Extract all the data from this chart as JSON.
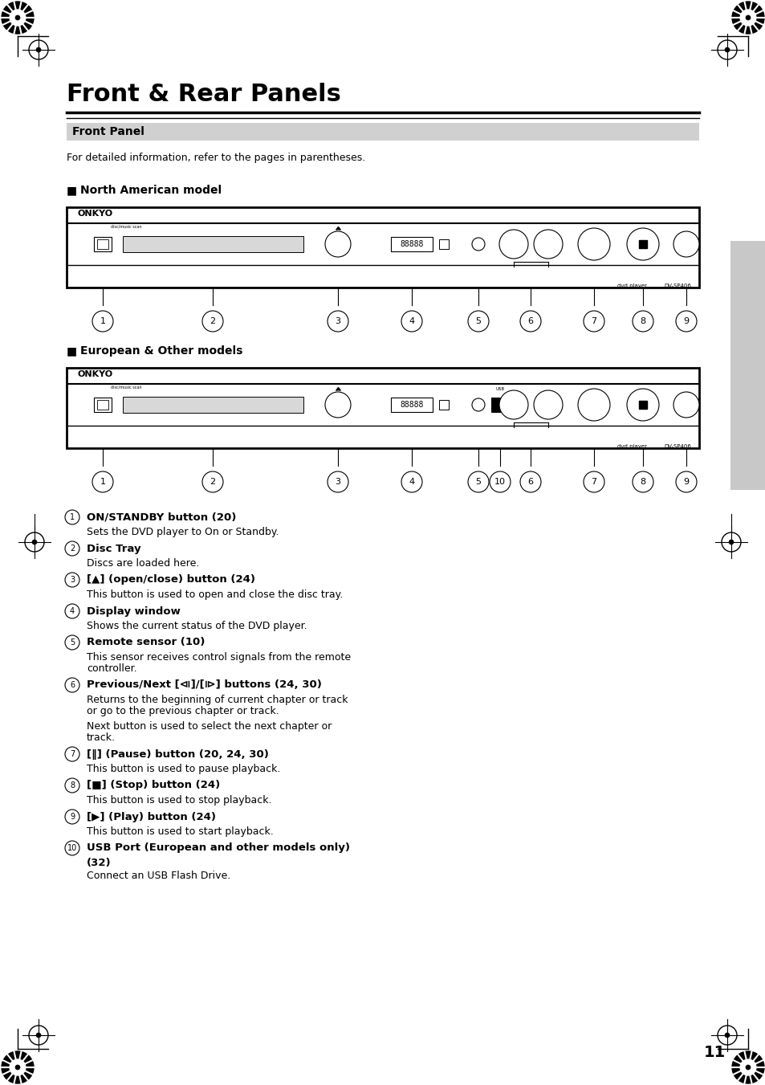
{
  "page_bg": "#ffffff",
  "title": "Front & Rear Panels",
  "section_header": "Front Panel",
  "intro_text": "For detailed information, refer to the pages in parentheses.",
  "north_american_label": "North American model",
  "european_label": "European & Other models",
  "items": [
    {
      "num": "1",
      "bold": "ON/STANDBY button (20)",
      "desc": "Sets the DVD player to On or Standby."
    },
    {
      "num": "2",
      "bold": "Disc Tray",
      "desc": "Discs are loaded here."
    },
    {
      "num": "3",
      "bold": "[▲] (open/close) button (24)",
      "desc": "This button is used to open and close the disc tray."
    },
    {
      "num": "4",
      "bold": "Display window",
      "desc": "Shows the current status of the DVD player."
    },
    {
      "num": "5",
      "bold": "Remote sensor (10)",
      "desc": "This sensor receives control signals from the remote\ncontroller."
    },
    {
      "num": "6",
      "bold": "Previous/Next [⧏]/[⧐] buttons (24, 30)",
      "desc": "Returns to the beginning of current chapter or track\nor go to the previous chapter or track.\n\nNext button is used to select the next chapter or\ntrack."
    },
    {
      "num": "7",
      "bold": "[‖] (Pause) button (20, 24, 30)",
      "desc": "This button is used to pause playback."
    },
    {
      "num": "8",
      "bold": "[■] (Stop) button (24)",
      "desc": "This button is used to stop playback."
    },
    {
      "num": "9",
      "bold": "[▶] (Play) button (24)",
      "desc": "This button is used to start playback."
    },
    {
      "num": "10",
      "bold": "USB Port (European and other models only)\n(32)",
      "desc": "Connect an USB Flash Drive."
    }
  ],
  "page_number": "11"
}
